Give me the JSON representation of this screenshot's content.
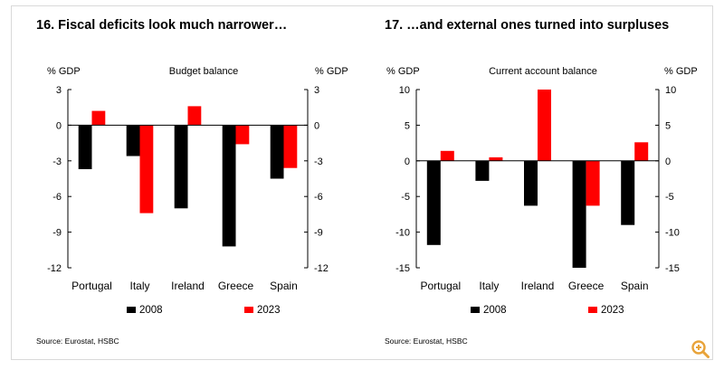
{
  "colors": {
    "2008": "#000000",
    "2023": "#ff0000",
    "zoom": "#e8a33a"
  },
  "zoom_icon": "zoom-in-icon",
  "chart_data": [
    {
      "type": "bar",
      "title": "16. Fiscal deficits look much narrower…",
      "subtitle": "Budget balance",
      "ylabel_left": "% GDP",
      "ylabel_right": "% GDP",
      "categories": [
        "Portugal",
        "Italy",
        "Ireland",
        "Greece",
        "Spain"
      ],
      "series": [
        {
          "name": "2008",
          "values": [
            -3.7,
            -2.6,
            -7.0,
            -10.2,
            -4.5
          ]
        },
        {
          "name": "2023",
          "values": [
            1.2,
            -7.4,
            1.6,
            -1.6,
            -3.6
          ]
        }
      ],
      "ylim": [
        -12,
        3
      ],
      "yticks": [
        3,
        0,
        -3,
        -6,
        -9,
        -12
      ],
      "ytick_labels": [
        "3",
        "0",
        "-3",
        "-6",
        "-9",
        "-12"
      ],
      "legend": [
        "2008",
        "2023"
      ],
      "legend_position": "bottom",
      "grid": false,
      "source": "Source: Eurostat, HSBC"
    },
    {
      "type": "bar",
      "title": "17. …and external ones turned into surpluses",
      "subtitle": "Current account balance",
      "ylabel_left": "% GDP",
      "ylabel_right": "% GDP",
      "categories": [
        "Portugal",
        "Italy",
        "Ireland",
        "Greece",
        "Spain"
      ],
      "series": [
        {
          "name": "2008",
          "values": [
            -11.8,
            -2.8,
            -6.3,
            -15.0,
            -9.0
          ]
        },
        {
          "name": "2023",
          "values": [
            1.4,
            0.5,
            10.0,
            -6.3,
            2.6
          ]
        }
      ],
      "ylim": [
        -15,
        10
      ],
      "yticks": [
        10,
        5,
        0,
        -5,
        -10,
        -15
      ],
      "ytick_labels": [
        "10",
        "5",
        "0",
        "-5",
        "-10",
        "-15"
      ],
      "legend": [
        "2008",
        "2023"
      ],
      "legend_position": "bottom",
      "grid": false,
      "source": "Source: Eurostat, HSBC"
    }
  ]
}
